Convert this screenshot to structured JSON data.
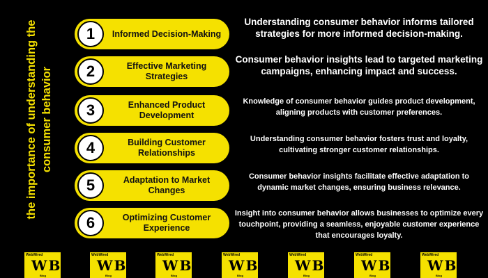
{
  "side_title": "the importance of understanding the consumer behavior",
  "accent_color": "#f5e100",
  "items": [
    {
      "number": "1",
      "title": "Informed Decision-Making",
      "description": "Understanding consumer behavior informs tailored strategies for more informed decision-making."
    },
    {
      "number": "2",
      "title": "Effective Marketing Strategies",
      "description": "Consumer behavior insights lead to targeted marketing campaigns, enhancing impact and success."
    },
    {
      "number": "3",
      "title": "Enhanced Product Development",
      "description": "Knowledge of consumer behavior guides product development, aligning products with customer preferences."
    },
    {
      "number": "4",
      "title": "Building Customer Relationships",
      "description": "Understanding consumer behavior fosters trust and loyalty, cultivating stronger customer relationships."
    },
    {
      "number": "5",
      "title": "Adaptation to Market Changes",
      "description": "Consumer behavior insights facilitate effective adaptation to dynamic market changes, ensuring business relevance."
    },
    {
      "number": "6",
      "title": "Optimizing Customer Experience",
      "description": "Insight into consumer behavior allows businesses to optimize every touchpoint, providing a seamless, enjoyable customer experience that encourages loyalty."
    }
  ],
  "logo": {
    "top_text": "WebWired",
    "mark": "WB",
    "bottom_text": "Blog"
  }
}
